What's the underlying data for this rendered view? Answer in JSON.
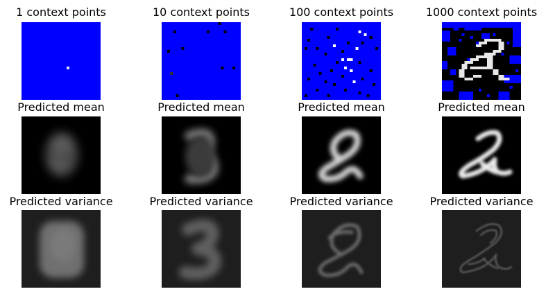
{
  "columns": [
    {
      "context_title": "1 context points",
      "mean_title": "Predicted mean",
      "variance_title": "Predicted variance"
    },
    {
      "context_title": "10 context points",
      "mean_title": "Predicted mean",
      "variance_title": "Predicted variance"
    },
    {
      "context_title": "100 context points",
      "mean_title": "Predicted mean",
      "variance_title": "Predicted variance"
    },
    {
      "context_title": "1000 context points",
      "mean_title": "Predicted mean",
      "variance_title": "Predicted variance"
    }
  ],
  "colors": {
    "context_background": "#0000ff",
    "mean_background": "#000000",
    "variance_background": "#1e1e1e",
    "page_background": "#ffffff"
  }
}
